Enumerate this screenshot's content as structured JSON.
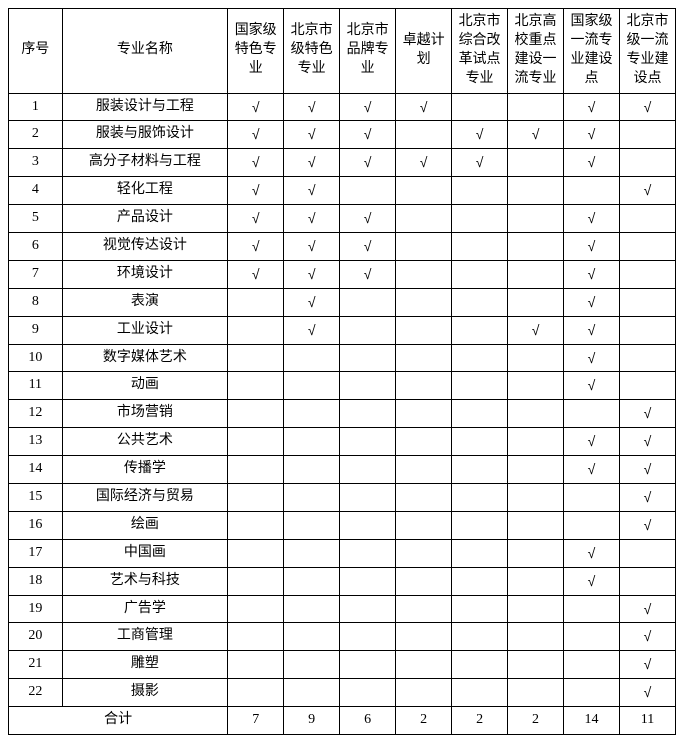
{
  "header": {
    "idx": "序号",
    "name": "专业名称",
    "cols": [
      "国家级特色专业",
      "北京市级特色专业",
      "北京市品牌专业",
      "卓越计划",
      "北京市综合改革试点专业",
      "北京高校重点建设一流专业",
      "国家级一流专业建设点",
      "北京市级一流专业建设点"
    ]
  },
  "checkmark": "√",
  "rows": [
    {
      "idx": "1",
      "name": "服装设计与工程",
      "c": [
        1,
        1,
        1,
        1,
        0,
        0,
        1,
        1
      ]
    },
    {
      "idx": "2",
      "name": "服装与服饰设计",
      "c": [
        1,
        1,
        1,
        0,
        1,
        1,
        1,
        0
      ]
    },
    {
      "idx": "3",
      "name": "高分子材料与工程",
      "c": [
        1,
        1,
        1,
        1,
        1,
        0,
        1,
        0
      ]
    },
    {
      "idx": "4",
      "name": "轻化工程",
      "c": [
        1,
        1,
        0,
        0,
        0,
        0,
        0,
        1
      ]
    },
    {
      "idx": "5",
      "name": "产品设计",
      "c": [
        1,
        1,
        1,
        0,
        0,
        0,
        1,
        0
      ]
    },
    {
      "idx": "6",
      "name": "视觉传达设计",
      "c": [
        1,
        1,
        1,
        0,
        0,
        0,
        1,
        0
      ]
    },
    {
      "idx": "7",
      "name": "环境设计",
      "c": [
        1,
        1,
        1,
        0,
        0,
        0,
        1,
        0
      ]
    },
    {
      "idx": "8",
      "name": "表演",
      "c": [
        0,
        1,
        0,
        0,
        0,
        0,
        1,
        0
      ]
    },
    {
      "idx": "9",
      "name": "工业设计",
      "c": [
        0,
        1,
        0,
        0,
        0,
        1,
        1,
        0
      ]
    },
    {
      "idx": "10",
      "name": "数字媒体艺术",
      "c": [
        0,
        0,
        0,
        0,
        0,
        0,
        1,
        0
      ]
    },
    {
      "idx": "11",
      "name": "动画",
      "c": [
        0,
        0,
        0,
        0,
        0,
        0,
        1,
        0
      ]
    },
    {
      "idx": "12",
      "name": "市场营销",
      "c": [
        0,
        0,
        0,
        0,
        0,
        0,
        0,
        1
      ]
    },
    {
      "idx": "13",
      "name": "公共艺术",
      "c": [
        0,
        0,
        0,
        0,
        0,
        0,
        1,
        1
      ]
    },
    {
      "idx": "14",
      "name": "传播学",
      "c": [
        0,
        0,
        0,
        0,
        0,
        0,
        1,
        1
      ]
    },
    {
      "idx": "15",
      "name": "国际经济与贸易",
      "c": [
        0,
        0,
        0,
        0,
        0,
        0,
        0,
        1
      ]
    },
    {
      "idx": "16",
      "name": "绘画",
      "c": [
        0,
        0,
        0,
        0,
        0,
        0,
        0,
        1
      ]
    },
    {
      "idx": "17",
      "name": "中国画",
      "c": [
        0,
        0,
        0,
        0,
        0,
        0,
        1,
        0
      ]
    },
    {
      "idx": "18",
      "name": "艺术与科技",
      "c": [
        0,
        0,
        0,
        0,
        0,
        0,
        1,
        0
      ]
    },
    {
      "idx": "19",
      "name": "广告学",
      "c": [
        0,
        0,
        0,
        0,
        0,
        0,
        0,
        1
      ]
    },
    {
      "idx": "20",
      "name": "工商管理",
      "c": [
        0,
        0,
        0,
        0,
        0,
        0,
        0,
        1
      ]
    },
    {
      "idx": "21",
      "name": "雕塑",
      "c": [
        0,
        0,
        0,
        0,
        0,
        0,
        0,
        1
      ]
    },
    {
      "idx": "22",
      "name": "摄影",
      "c": [
        0,
        0,
        0,
        0,
        0,
        0,
        0,
        1
      ]
    }
  ],
  "total": {
    "label": "合计",
    "values": [
      "7",
      "9",
      "6",
      "2",
      "2",
      "2",
      "14",
      "11"
    ]
  }
}
